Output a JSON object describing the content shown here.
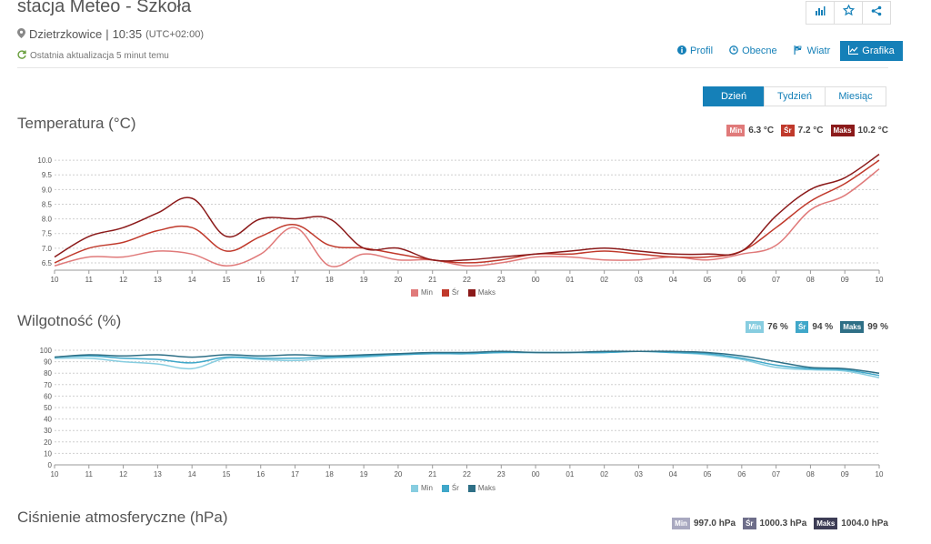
{
  "header": {
    "title": "stacja Meteo - Szkoła",
    "location": "Dzietrzkowice",
    "time": "10:35",
    "timezone": "(UTC+02:00)",
    "last_update": "Ostatnia aktualizacja 5 minut temu"
  },
  "nav": {
    "profil": "Profil",
    "obecne": "Obecne",
    "wiatr": "Wiatr",
    "grafika": "Grafika"
  },
  "period_tabs": [
    "Dzień",
    "Tydzień",
    "Miesiąc"
  ],
  "colors": {
    "accent": "#1580b8"
  },
  "temperature": {
    "title": "Temperatura (°C)",
    "stats": [
      {
        "label": "Min",
        "value": "6.3 °C",
        "color": "#e07a7a"
      },
      {
        "label": "Śr",
        "value": "7.2 °C",
        "color": "#c0392b"
      },
      {
        "label": "Maks",
        "value": "10.2 °C",
        "color": "#8b1a1a"
      }
    ]
  },
  "humidity": {
    "title": "Wilgotność (%)",
    "stats": [
      {
        "label": "Min",
        "value": "76 %",
        "color": "#87cde0"
      },
      {
        "label": "Śr",
        "value": "94 %",
        "color": "#3fa7c9"
      },
      {
        "label": "Maks",
        "value": "99 %",
        "color": "#2e6f86"
      }
    ]
  },
  "pressure": {
    "title": "Ciśnienie atmosferyczne (hPa)",
    "stats": [
      {
        "label": "Min",
        "value": "997.0 hPa",
        "color": "#a9a9c0"
      },
      {
        "label": "Śr",
        "value": "1000.3 hPa",
        "color": "#6e6e8a"
      },
      {
        "label": "Maks",
        "value": "1004.0 hPa",
        "color": "#3d3d55"
      }
    ]
  },
  "chart_data": [
    {
      "type": "line",
      "title": "Temperatura (°C)",
      "x": [
        "10",
        "11",
        "12",
        "13",
        "14",
        "15",
        "16",
        "17",
        "18",
        "19",
        "20",
        "21",
        "22",
        "23",
        "00",
        "01",
        "02",
        "03",
        "04",
        "05",
        "06",
        "07",
        "08",
        "09",
        "10"
      ],
      "ylim": [
        6.25,
        10.25
      ],
      "yticks": [
        6.5,
        7.0,
        7.5,
        8.0,
        8.5,
        9.0,
        9.5,
        10.0
      ],
      "grid": true,
      "legend": "bottom-center",
      "series": [
        {
          "name": "Min",
          "color": "#e07a7a",
          "values": [
            6.4,
            6.7,
            6.7,
            6.9,
            6.8,
            6.4,
            6.8,
            7.7,
            6.4,
            6.8,
            6.6,
            6.6,
            6.4,
            6.5,
            6.7,
            6.7,
            6.6,
            6.6,
            6.7,
            6.6,
            6.8,
            7.1,
            8.3,
            8.8,
            9.7
          ]
        },
        {
          "name": "Śr",
          "color": "#c0392b",
          "values": [
            6.5,
            7.0,
            7.2,
            7.6,
            7.7,
            6.9,
            7.4,
            7.8,
            7.1,
            7.0,
            6.8,
            6.6,
            6.5,
            6.6,
            6.8,
            6.8,
            6.9,
            6.8,
            6.7,
            6.7,
            6.9,
            7.7,
            8.6,
            9.2,
            10.0
          ]
        },
        {
          "name": "Maks",
          "color": "#8b1a1a",
          "values": [
            6.7,
            7.4,
            7.7,
            8.2,
            8.7,
            7.4,
            8.0,
            8.0,
            8.0,
            7.0,
            7.0,
            6.6,
            6.6,
            6.7,
            6.8,
            6.9,
            7.0,
            6.9,
            6.8,
            6.8,
            6.9,
            8.1,
            9.0,
            9.4,
            10.2
          ]
        }
      ]
    },
    {
      "type": "line",
      "title": "Wilgotność (%)",
      "x": [
        "10",
        "11",
        "12",
        "13",
        "14",
        "15",
        "16",
        "17",
        "18",
        "19",
        "20",
        "21",
        "22",
        "23",
        "00",
        "01",
        "02",
        "03",
        "04",
        "05",
        "06",
        "07",
        "08",
        "09",
        "10"
      ],
      "ylim": [
        0,
        100
      ],
      "yticks": [
        0,
        10,
        20,
        30,
        40,
        50,
        60,
        70,
        80,
        90,
        100
      ],
      "grid": true,
      "legend": "bottom-center",
      "series": [
        {
          "name": "Min",
          "color": "#87cde0",
          "values": [
            93,
            93,
            90,
            88,
            84,
            93,
            92,
            91,
            93,
            94,
            96,
            97,
            97,
            98,
            98,
            98,
            98,
            99,
            98,
            96,
            92,
            85,
            83,
            82,
            76
          ]
        },
        {
          "name": "Śr",
          "color": "#3fa7c9",
          "values": [
            94,
            95,
            93,
            92,
            89,
            94,
            93,
            93,
            94,
            95,
            96,
            97,
            97,
            98,
            98,
            98,
            98,
            99,
            98,
            97,
            93,
            87,
            84,
            83,
            78
          ]
        },
        {
          "name": "Maks",
          "color": "#2e6f86",
          "values": [
            94,
            96,
            95,
            96,
            94,
            96,
            95,
            96,
            95,
            96,
            97,
            98,
            98,
            99,
            98,
            98,
            99,
            99,
            99,
            98,
            95,
            90,
            85,
            84,
            80
          ]
        }
      ]
    }
  ]
}
